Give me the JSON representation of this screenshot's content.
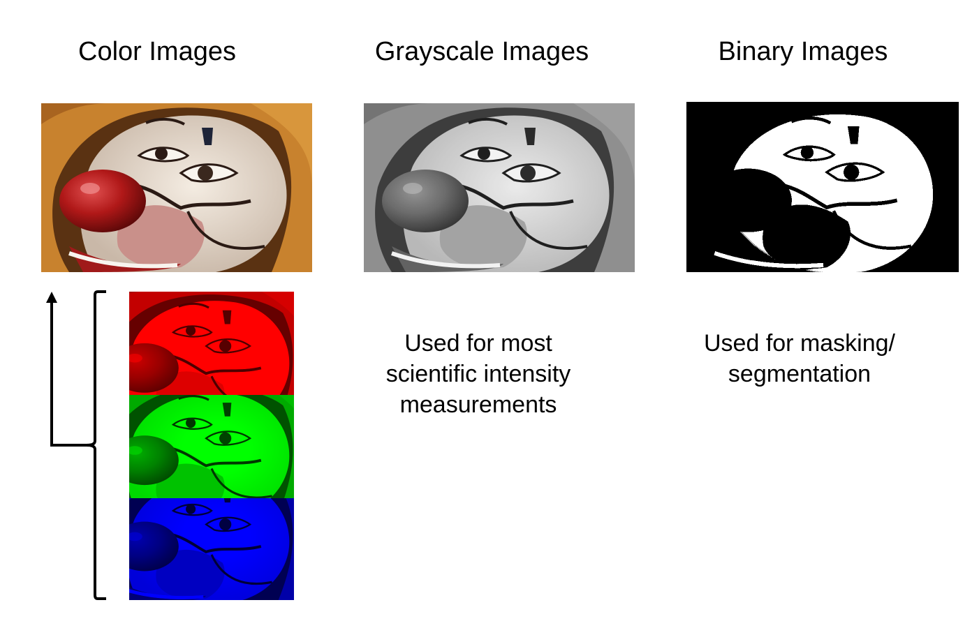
{
  "headings": {
    "color": "Color Images",
    "grayscale": "Grayscale Images",
    "binary": "Binary Images"
  },
  "captions": {
    "grayscale": [
      "Used for most",
      "scientific intensity",
      "measurements"
    ],
    "binary": [
      "Used for masking/",
      "segmentation"
    ]
  },
  "images": {
    "color": "clown-face-color-photo",
    "grayscale": "clown-face-grayscale-photo",
    "binary": "clown-face-binary-photo",
    "red": "clown-face-red-channel",
    "green": "clown-face-green-channel",
    "blue": "clown-face-blue-channel"
  },
  "colors": {
    "hair": "#c8822e",
    "skin": "#ece3d8",
    "nose": "#b01818",
    "outline": "#2a1a14",
    "red_channel": "#d01010",
    "green_channel": "#28a828",
    "blue_channel": "#1028c8"
  }
}
